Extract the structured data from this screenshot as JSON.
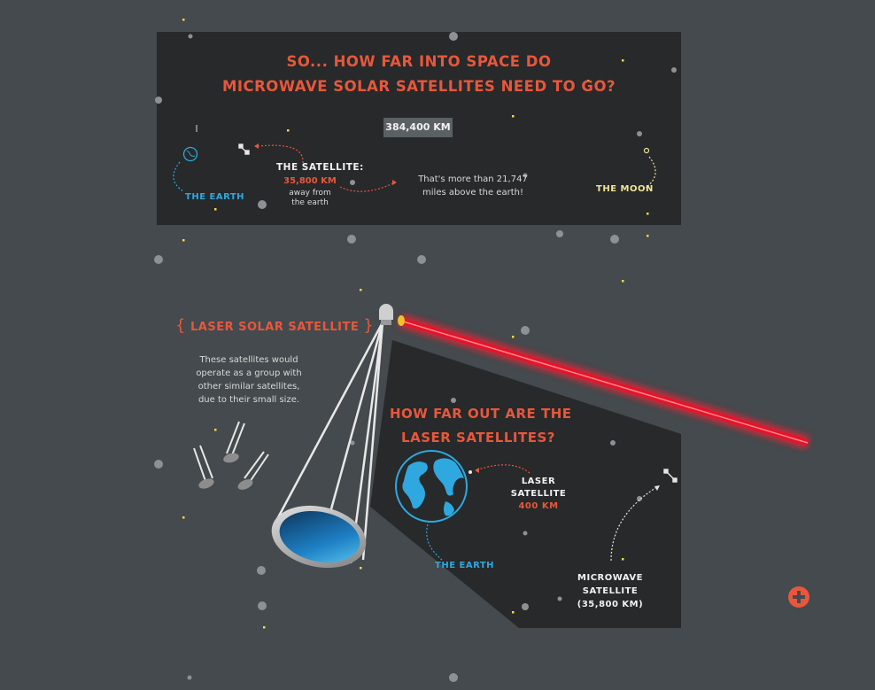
{
  "top_panel": {
    "title_line1": "SO... HOW FAR INTO SPACE DO",
    "title_line2": "MICROWAVE SOLAR SATELLITES NEED TO GO?",
    "distance_badge": "384,400 KM",
    "satellite_label": "THE SATELLITE:",
    "satellite_km": "35,800 KM",
    "satellite_away_line1": "away from",
    "satellite_away_line2": "the earth",
    "miles_line1": "That's more than 21,747",
    "miles_line2": "miles above the earth!",
    "earth_label": "THE EARTH",
    "moon_label": "THE MOON"
  },
  "laser_section": {
    "heading_open": "{",
    "heading": "LASER SOLAR SATELLITE",
    "heading_close": "}",
    "desc_line1": "These satellites would",
    "desc_line2": "operate as a group with",
    "desc_line3": "other similar satellites,",
    "desc_line4": "due to their small size."
  },
  "lower_panel": {
    "title_line1": "HOW FAR OUT ARE THE",
    "title_line2": "LASER SATELLITES?",
    "laser_line1": "LASER",
    "laser_line2": "SATELLITE",
    "laser_km": "400 KM",
    "earth_label": "THE EARTH",
    "micro_line1": "MICROWAVE",
    "micro_line2": "SATELLITE",
    "micro_line3": "(35,800 KM)"
  },
  "colors": {
    "background": "#444a4d",
    "panel": "#27292a",
    "accent_orange": "#e8573c",
    "earth_blue": "#2fa8e0",
    "moon_yellow": "#f1e39a",
    "laser_red": "#e8122a"
  },
  "icons": {
    "expand_button": "plus-circle-icon"
  }
}
